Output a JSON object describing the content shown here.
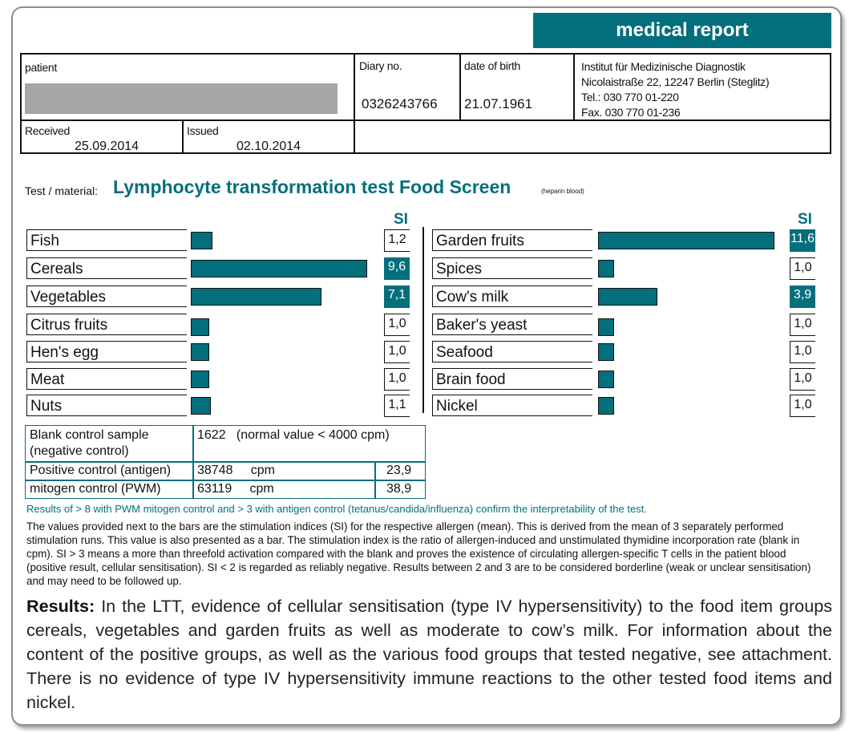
{
  "banner": "medical report",
  "header": {
    "patient_label": "patient",
    "diary_label": "Diary no.",
    "diary_value": "0326243766",
    "dob_label": "date of birth",
    "dob_value": "21.07.1961",
    "institute": [
      "Institut für Medizinische Diagnostik",
      "Nicolaistraße 22, 12247 Berlin (Steglitz)",
      "Tel.: 030 770 01-220",
      "Fax. 030 770 01-236"
    ],
    "received_label": "Received",
    "received_value": "25.09.2014",
    "issued_label": "Issued",
    "issued_value": "02.10.2014"
  },
  "test": {
    "label": "Test / material:",
    "name": "Lymphocyte transformation test Food Screen",
    "material": "(heparin blood)"
  },
  "chart_data": {
    "type": "bar",
    "orientation": "horizontal",
    "si_header": "SI",
    "left": [
      {
        "category": "Fish",
        "value": 1.2,
        "label": "1,2"
      },
      {
        "category": "Cereals",
        "value": 9.6,
        "label": "9,6"
      },
      {
        "category": "Vegetables",
        "value": 7.1,
        "label": "7,1"
      },
      {
        "category": "Citrus fruits",
        "value": 1.0,
        "label": "1,0"
      },
      {
        "category": "Hen's egg",
        "value": 1.0,
        "label": "1,0"
      },
      {
        "category": "Meat",
        "value": 1.0,
        "label": "1,0"
      },
      {
        "category": "Nuts",
        "value": 1.1,
        "label": "1,1"
      }
    ],
    "right": [
      {
        "category": "Garden fruits",
        "value": 11.6,
        "label": "11,6"
      },
      {
        "category": "Spices",
        "value": 1.0,
        "label": "1,0"
      },
      {
        "category": "Cow's milk",
        "value": 3.9,
        "label": "3,9"
      },
      {
        "category": "Baker's yeast",
        "value": 1.0,
        "label": "1,0"
      },
      {
        "category": "Seafood",
        "value": 1.0,
        "label": "1,0"
      },
      {
        "category": "Brain food",
        "value": 1.0,
        "label": "1,0"
      },
      {
        "category": "Nickel",
        "value": 1.0,
        "label": "1,0"
      }
    ],
    "highlight_threshold": 3,
    "accent_color": "#046f7c"
  },
  "controls": {
    "blank_label_1": "Blank control sample",
    "blank_label_2": "(negative control)",
    "blank_value": "1622   (normal value < 4000 cpm)",
    "positive_label": "Positive control (antigen)",
    "positive_cpm": "38748     cpm",
    "positive_si": "23,9",
    "mitogen_label": "mitogen control (PWM)",
    "mitogen_cpm": "63119     cpm",
    "mitogen_si": "38,9"
  },
  "note_teal": "Results of > 8 with PWM mitogen control and > 3 with antigen control (tetanus/candida/influenza) confirm the interpretability of the test.",
  "note": "The values provided next to the bars are the stimulation indices (SI) for the respective allergen (mean). This is derived from the mean of 3 separately performed stimulation runs. This value is also presented as a bar. The stimulation index is the ratio of allergen-induced and unstimulated thymidine incorporation rate (blank in cpm). SI > 3 means a more than threefold activation compared with the blank and proves the existence of circulating allergen-specific T cells in the patient blood (positive result, cellular sensitisation). SI < 2 is regarded as reliably negative. Results between 2 and 3 are to be considered borderline (weak or unclear sensitisation) and may need to be followed up.",
  "results_label": "Results:",
  "results_text": "In the LTT, evidence of cellular sensitisation (type IV hypersensitivity) to the food item groups cereals, vegetables and garden fruits as well as moderate to cow’s milk. For information about the content of the positive groups, as well as the various food groups that tested negative, see attachment. There is no evidence of type IV hypersensitivity immune reactions to the other tested food items and nickel."
}
